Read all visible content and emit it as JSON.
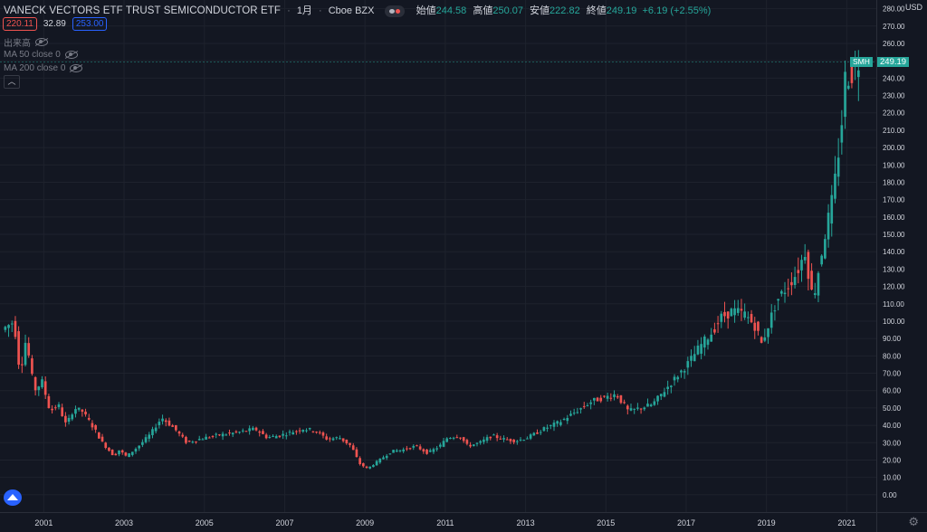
{
  "header": {
    "symbol_name": "VANECK VECTORS ETF TRUST SEMICONDUCTOR ETF",
    "interval": "1月",
    "exchange": "Cboe BZX",
    "open_label": "始値",
    "open_value": "244.58",
    "high_label": "高値",
    "high_value": "250.07",
    "low_label": "安値",
    "low_value": "222.82",
    "close_label": "終値",
    "close_value": "249.19",
    "change": "+6.19 (+2.55%)"
  },
  "order_row": {
    "bid": "220.11",
    "spread": "32.89",
    "ask": "253.00"
  },
  "indicators": [
    {
      "label": "出来高"
    },
    {
      "label": "MA 50 close 0"
    },
    {
      "label": "MA 200 close 0"
    }
  ],
  "price_axis": {
    "currency": "USD",
    "ticks": [
      "0.00",
      "10.00",
      "20.00",
      "30.00",
      "40.00",
      "50.00",
      "60.00",
      "70.00",
      "80.00",
      "90.00",
      "100.00",
      "110.00",
      "120.00",
      "130.00",
      "140.00",
      "150.00",
      "160.00",
      "170.00",
      "180.00",
      "190.00",
      "200.00",
      "210.00",
      "220.00",
      "230.00",
      "240.00",
      "250.00",
      "260.00",
      "270.00",
      "280.00"
    ],
    "last_price": "249.19",
    "symbol_tag": "SMH"
  },
  "time_axis": {
    "ticks": [
      "2001",
      "2003",
      "2005",
      "2007",
      "2009",
      "2011",
      "2013",
      "2015",
      "2017",
      "2019",
      "2021"
    ]
  },
  "colors": {
    "up": "#26a69a",
    "down": "#ef5350",
    "background": "#131722",
    "grid": "#1e222d"
  },
  "icons": {
    "logo": "tradingview-logo-icon",
    "settings": "gear-icon",
    "collapse": "chevron-up-icon",
    "visibility": "eye-icon"
  },
  "chart_data": {
    "type": "candlestick",
    "interval": "monthly",
    "y_range": [
      -10,
      285
    ],
    "x_range": [
      2000.0,
      2021.6
    ],
    "anchors": [
      [
        2000.0,
        95
      ],
      [
        2000.3,
        100
      ],
      [
        2000.45,
        70
      ],
      [
        2000.6,
        90
      ],
      [
        2000.8,
        60
      ],
      [
        2001.0,
        65
      ],
      [
        2001.2,
        48
      ],
      [
        2001.4,
        52
      ],
      [
        2001.6,
        40
      ],
      [
        2001.8,
        50
      ],
      [
        2002.0,
        48
      ],
      [
        2002.3,
        38
      ],
      [
        2002.5,
        30
      ],
      [
        2002.8,
        22
      ],
      [
        2002.9,
        26
      ],
      [
        2003.1,
        22
      ],
      [
        2003.4,
        28
      ],
      [
        2003.7,
        35
      ],
      [
        2003.9,
        42
      ],
      [
        2004.0,
        44
      ],
      [
        2004.3,
        38
      ],
      [
        2004.6,
        30
      ],
      [
        2004.9,
        32
      ],
      [
        2005.3,
        34
      ],
      [
        2005.6,
        35
      ],
      [
        2005.9,
        36
      ],
      [
        2006.3,
        38
      ],
      [
        2006.6,
        33
      ],
      [
        2006.9,
        34
      ],
      [
        2007.2,
        36
      ],
      [
        2007.5,
        38
      ],
      [
        2007.8,
        37
      ],
      [
        2008.1,
        32
      ],
      [
        2008.4,
        33
      ],
      [
        2008.7,
        28
      ],
      [
        2008.9,
        18
      ],
      [
        2009.1,
        15
      ],
      [
        2009.4,
        20
      ],
      [
        2009.7,
        25
      ],
      [
        2010.0,
        26
      ],
      [
        2010.3,
        28
      ],
      [
        2010.6,
        24
      ],
      [
        2010.9,
        28
      ],
      [
        2011.1,
        33
      ],
      [
        2011.4,
        34
      ],
      [
        2011.6,
        28
      ],
      [
        2011.9,
        30
      ],
      [
        2012.2,
        34
      ],
      [
        2012.5,
        32
      ],
      [
        2012.8,
        31
      ],
      [
        2013.1,
        33
      ],
      [
        2013.5,
        38
      ],
      [
        2013.9,
        42
      ],
      [
        2014.3,
        48
      ],
      [
        2014.7,
        54
      ],
      [
        2015.0,
        56
      ],
      [
        2015.3,
        58
      ],
      [
        2015.6,
        48
      ],
      [
        2015.9,
        50
      ],
      [
        2016.2,
        52
      ],
      [
        2016.5,
        60
      ],
      [
        2016.8,
        68
      ],
      [
        2017.1,
        76
      ],
      [
        2017.4,
        86
      ],
      [
        2017.7,
        94
      ],
      [
        2017.9,
        102
      ],
      [
        2018.2,
        106
      ],
      [
        2018.5,
        104
      ],
      [
        2018.8,
        96
      ],
      [
        2018.9,
        86
      ],
      [
        2019.0,
        92
      ],
      [
        2019.3,
        112
      ],
      [
        2019.5,
        118
      ],
      [
        2019.8,
        128
      ],
      [
        2020.0,
        140
      ],
      [
        2020.2,
        112
      ],
      [
        2020.5,
        150
      ],
      [
        2020.7,
        172
      ],
      [
        2020.9,
        210
      ],
      [
        2021.0,
        240
      ],
      [
        2021.2,
        243
      ],
      [
        2021.3,
        249.19
      ]
    ]
  }
}
